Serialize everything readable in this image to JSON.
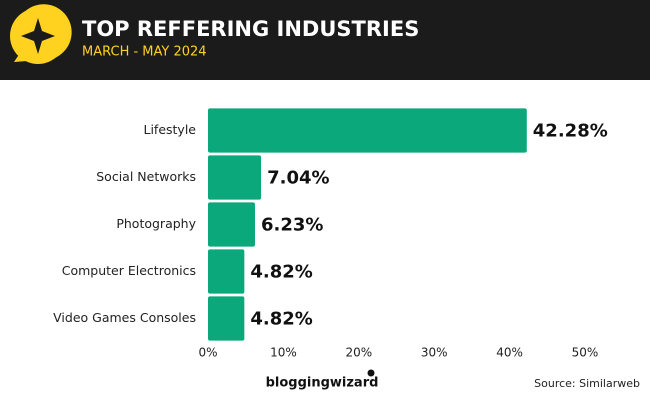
{
  "chart_data": {
    "type": "bar",
    "orientation": "horizontal",
    "title": "TOP REFFERING INDUSTRIES",
    "subtitle": "MARCH - MAY 2024",
    "categories": [
      "Lifestyle",
      "Social Networks",
      "Photography",
      "Computer Electronics",
      "Video Games Consoles"
    ],
    "values": [
      42.28,
      7.04,
      6.23,
      4.82,
      4.82
    ],
    "value_labels": [
      "42.28%",
      "7.04%",
      "6.23%",
      "4.82%",
      "4.82%"
    ],
    "color": "#0aa87a",
    "xlim": [
      0,
      50
    ],
    "xticks": [
      {
        "value": 0,
        "label": "0%"
      },
      {
        "value": 10,
        "label": "10%"
      },
      {
        "value": 20,
        "label": "20%"
      },
      {
        "value": 30,
        "label": "30%"
      },
      {
        "value": 40,
        "label": "40%"
      },
      {
        "value": 50,
        "label": "50%"
      }
    ],
    "grid": false
  },
  "footer": {
    "brand": "bloggingwizard",
    "source": "Source: Similarweb"
  }
}
